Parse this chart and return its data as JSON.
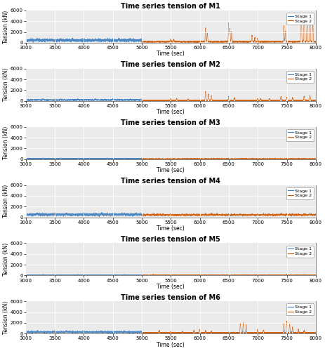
{
  "titles": [
    "Time series tension of M1",
    "Time series tension of M2",
    "Time series tension of M3",
    "Time series tension of M4",
    "Time series tension of M5",
    "Time series tension of M6"
  ],
  "xlabel": "Time (sec)",
  "ylabel": "Tension (kN)",
  "xlim": [
    3000,
    8000
  ],
  "ylim": [
    0,
    6000
  ],
  "xticks": [
    3000,
    3500,
    4000,
    4500,
    5000,
    5500,
    6000,
    6500,
    7000,
    7500,
    8000
  ],
  "yticks": [
    0,
    2000,
    4000,
    6000
  ],
  "stage1_color": "#3a7bbd",
  "stage2_color": "#cc5500",
  "stage1_label": "Stage 1",
  "stage2_label": "Stage 2",
  "figsize": [
    4.63,
    5.0
  ],
  "dpi": 100,
  "seed": 42,
  "background_color": "#ebebeb",
  "grid_color": "#ffffff",
  "title_fontsize": 7,
  "tick_fontsize": 5,
  "label_fontsize": 5.5,
  "legend_fontsize": 4.5
}
